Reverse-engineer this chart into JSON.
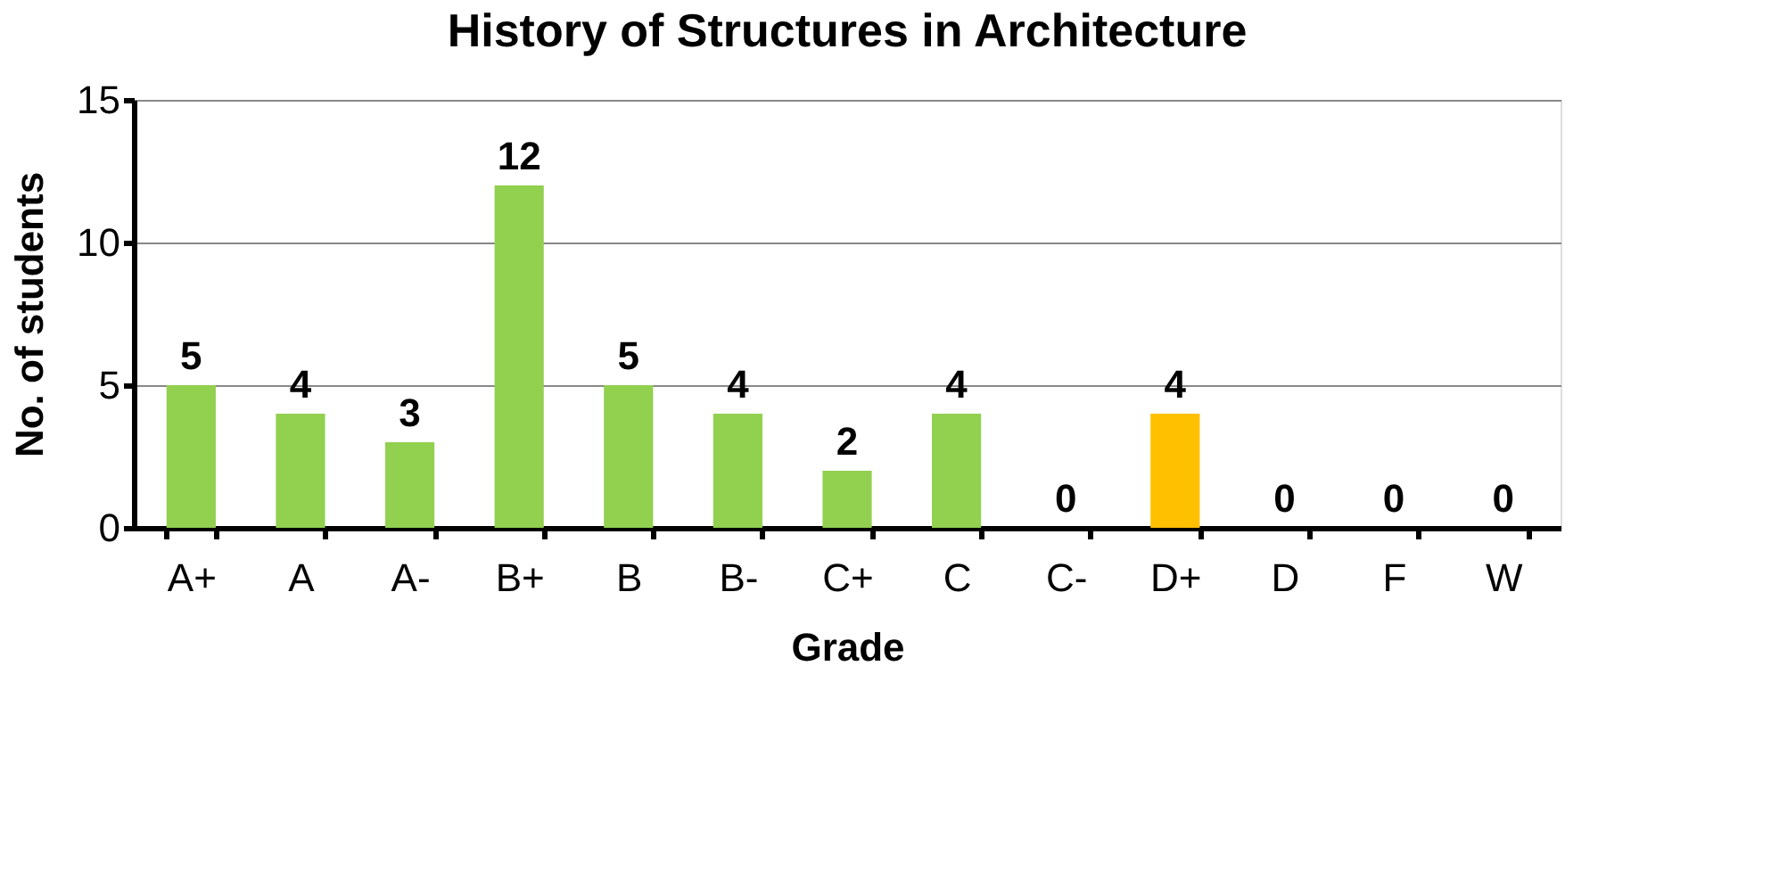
{
  "chart_data": {
    "type": "bar",
    "title": "History of Structures in Architecture",
    "xlabel": "Grade",
    "ylabel": "No. of students",
    "categories": [
      "A+",
      "A",
      "A-",
      "B+",
      "B",
      "B-",
      "C+",
      "C",
      "C-",
      "D+",
      "D",
      "F",
      "W"
    ],
    "values": [
      5,
      4,
      3,
      12,
      5,
      4,
      2,
      4,
      0,
      4,
      0,
      0,
      0
    ],
    "colors": [
      "#92d050",
      "#92d050",
      "#92d050",
      "#92d050",
      "#92d050",
      "#92d050",
      "#92d050",
      "#92d050",
      "#92d050",
      "#ffc000",
      "#92d050",
      "#92d050",
      "#92d050"
    ],
    "ylim": [
      0,
      15
    ],
    "yticks": [
      0,
      5,
      10,
      15
    ],
    "grid": "y",
    "data_labels": true,
    "legend": false
  }
}
